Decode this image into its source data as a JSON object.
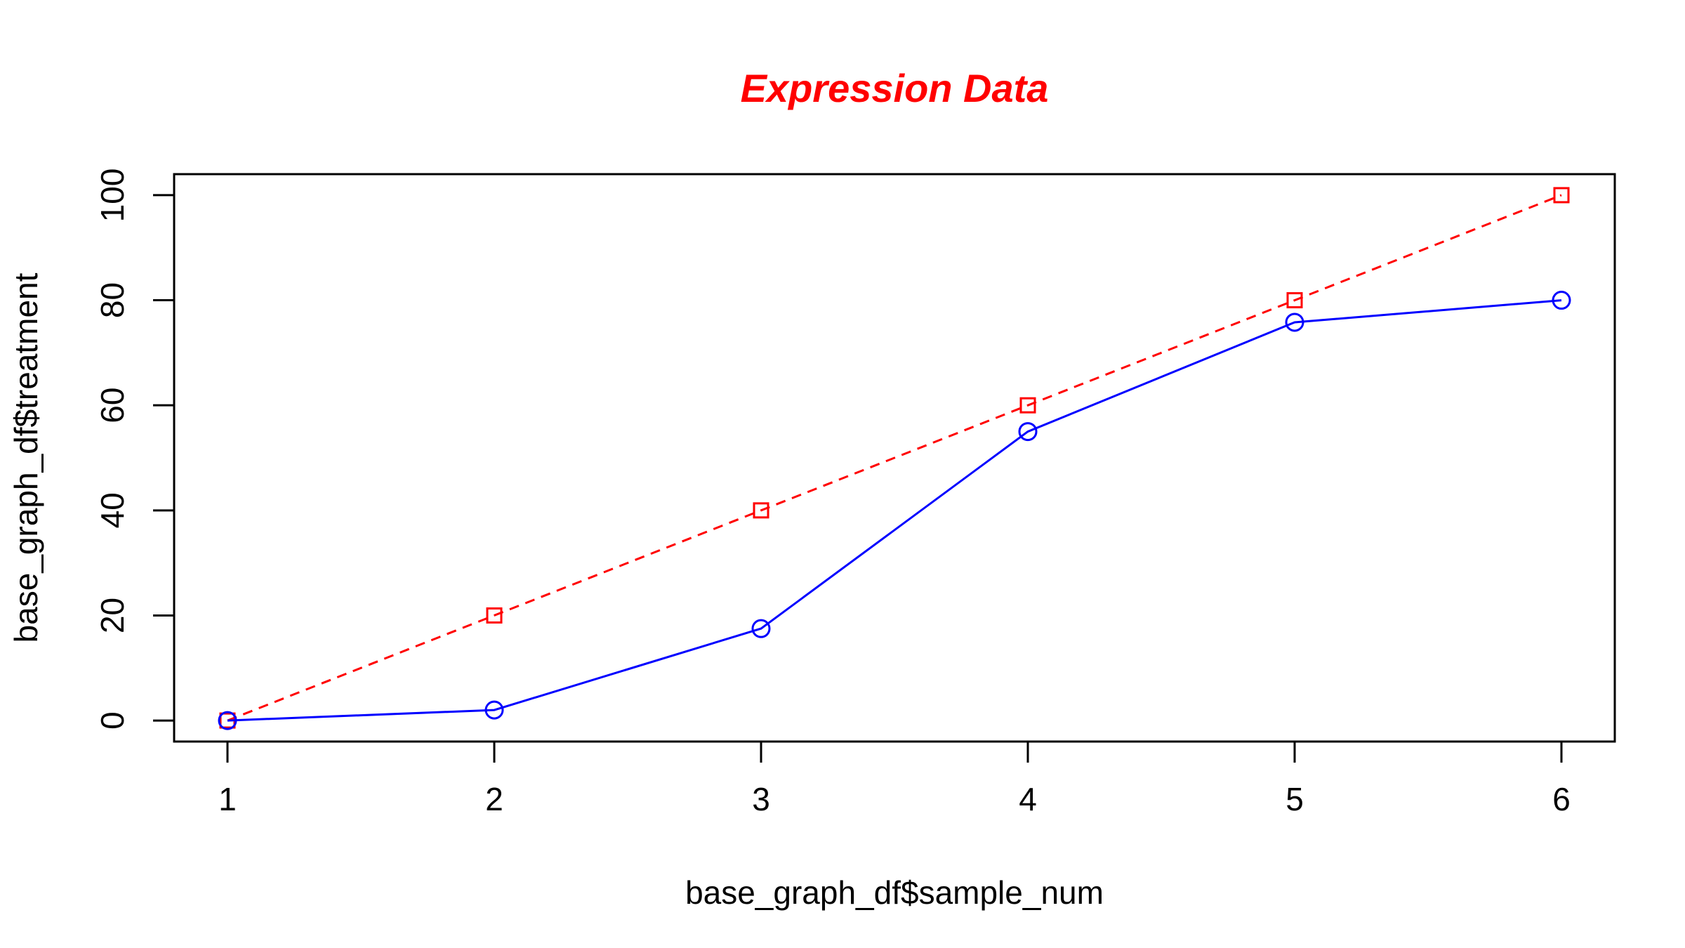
{
  "chart_data": {
    "type": "line",
    "title": "Expression Data",
    "xlabel": "base_graph_df$sample_num",
    "ylabel": "base_graph_df$treatment",
    "x": [
      1,
      2,
      3,
      4,
      5,
      6
    ],
    "xlim": [
      0.8,
      6.2
    ],
    "ylim": [
      -4,
      104
    ],
    "x_ticks": [
      1,
      2,
      3,
      4,
      5,
      6
    ],
    "y_ticks": [
      0,
      20,
      40,
      60,
      80,
      100
    ],
    "grid": false,
    "legend": "none",
    "series": [
      {
        "values": [
          0,
          20,
          40,
          60,
          80,
          100
        ],
        "color": "#FF0000",
        "line_style": "dashed",
        "marker": "square"
      },
      {
        "values": [
          0,
          2,
          17.5,
          55,
          75.8,
          80
        ],
        "color": "#0000FF",
        "line_style": "solid",
        "marker": "circle"
      }
    ],
    "colors": {
      "title": "#FF0000",
      "axes": "#000000"
    }
  }
}
